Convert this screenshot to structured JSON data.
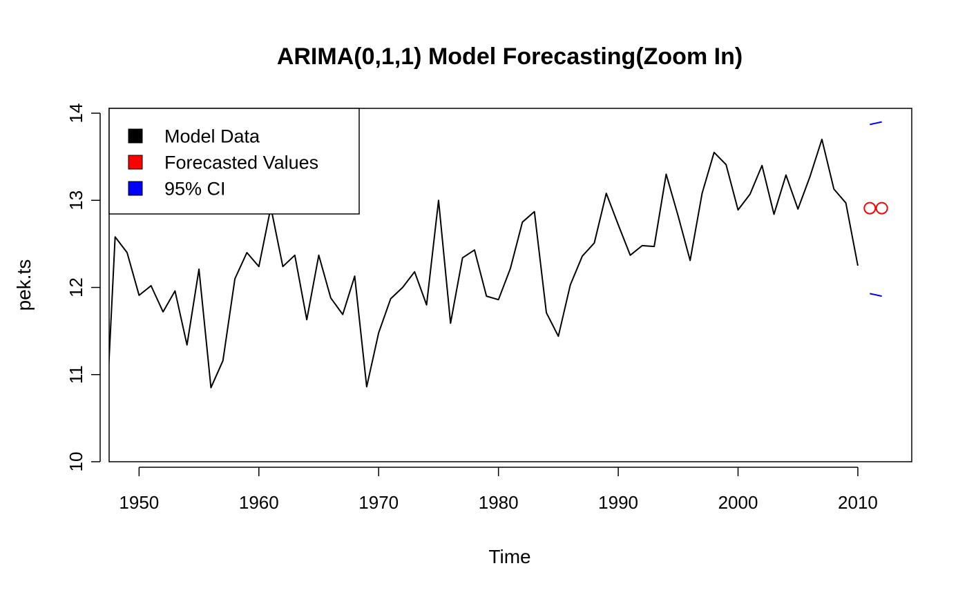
{
  "chart_data": {
    "type": "line",
    "title": "ARIMA(0,1,1) Model Forecasting(Zoom In)",
    "xlabel": "Time",
    "ylabel": "pek.ts",
    "xlim": [
      1947.5,
      2014.5
    ],
    "ylim": [
      10,
      14
    ],
    "x_ticks": [
      1950,
      1960,
      1970,
      1980,
      1990,
      2000,
      2010
    ],
    "y_ticks": [
      10,
      11,
      12,
      13,
      14
    ],
    "legend": {
      "position": "top-left",
      "entries": [
        {
          "label": "Model Data",
          "color": "#000000"
        },
        {
          "label": "Forecasted Values",
          "color": "#ff0000"
        },
        {
          "label": "95% CI",
          "color": "#0000ff"
        }
      ]
    },
    "series": [
      {
        "name": "Model Data",
        "color": "#000000",
        "style": "line",
        "x": [
          1947,
          1948,
          1949,
          1950,
          1951,
          1952,
          1953,
          1954,
          1955,
          1956,
          1957,
          1958,
          1959,
          1960,
          1961,
          1962,
          1963,
          1964,
          1965,
          1966,
          1967,
          1968,
          1969,
          1970,
          1971,
          1972,
          1973,
          1974,
          1975,
          1976,
          1977,
          1978,
          1979,
          1980,
          1981,
          1982,
          1983,
          1984,
          1985,
          1986,
          1987,
          1988,
          1989,
          1990,
          1991,
          1992,
          1993,
          1994,
          1995,
          1996,
          1997,
          1998,
          1999,
          2000,
          2001,
          2002,
          2003,
          2004,
          2005,
          2006,
          2007,
          2008,
          2009,
          2010
        ],
        "values": [
          9.8,
          12.58,
          12.4,
          11.91,
          12.02,
          11.72,
          11.96,
          11.34,
          12.21,
          10.85,
          11.16,
          12.1,
          12.4,
          12.24,
          12.92,
          12.24,
          12.37,
          11.63,
          12.37,
          11.88,
          11.69,
          12.13,
          10.86,
          11.48,
          11.87,
          12.0,
          12.18,
          11.8,
          13.0,
          11.59,
          12.34,
          12.43,
          11.9,
          11.86,
          12.22,
          12.75,
          12.87,
          11.71,
          11.44,
          12.03,
          12.36,
          12.51,
          13.08,
          12.72,
          12.37,
          12.48,
          12.47,
          13.3,
          12.82,
          12.31,
          13.08,
          13.55,
          13.41,
          12.89,
          13.07,
          13.4,
          12.84,
          13.29,
          12.9,
          13.27,
          13.7,
          13.13,
          12.97,
          12.25
        ]
      },
      {
        "name": "Forecasted Values",
        "color": "#ff0000",
        "style": "points",
        "x": [
          2011,
          2012
        ],
        "values": [
          12.91,
          12.91
        ]
      },
      {
        "name": "95% CI Upper",
        "color": "#0000ff",
        "style": "line",
        "x": [
          2011,
          2012
        ],
        "values": [
          13.87,
          13.9
        ]
      },
      {
        "name": "95% CI Lower",
        "color": "#0000ff",
        "style": "line",
        "x": [
          2011,
          2012
        ],
        "values": [
          11.93,
          11.9
        ]
      }
    ]
  }
}
